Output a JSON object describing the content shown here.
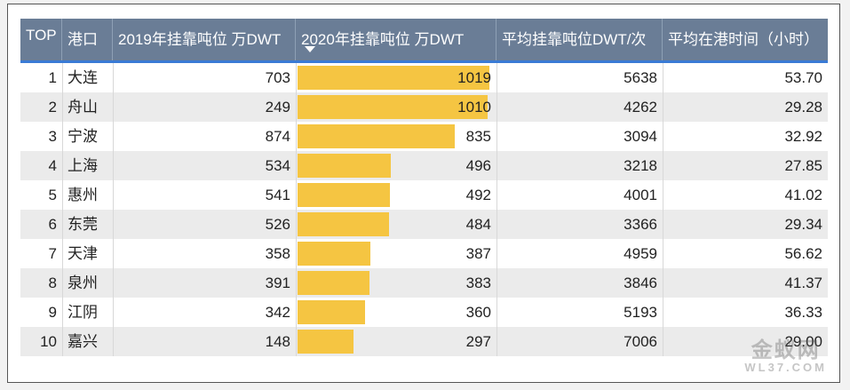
{
  "headers": {
    "rank": "TOP",
    "port": "港口",
    "y2019": "2019年挂靠吨位 万DWT",
    "y2020": "2020年挂靠吨位 万DWT",
    "avg_dwt": "平均挂靠吨位DWT/次",
    "avg_time": "平均在港时间（小时）"
  },
  "sort": {
    "column": "y2020",
    "direction": "desc",
    "icon": "sort-down-icon"
  },
  "colors": {
    "header_bg": "#6a7d96",
    "bar": "#f5c542",
    "alt_row": "#ebebeb",
    "accent": "#3a7bd5"
  },
  "chart_data": {
    "type": "table",
    "bar_column": "y2020",
    "bar_max": 1019,
    "rows": [
      {
        "rank": "1",
        "port": "大连",
        "y2019": "703",
        "y2020": "1019",
        "avg_dwt": "5638",
        "avg_time": "53.70"
      },
      {
        "rank": "2",
        "port": "舟山",
        "y2019": "249",
        "y2020": "1010",
        "avg_dwt": "4262",
        "avg_time": "29.28"
      },
      {
        "rank": "3",
        "port": "宁波",
        "y2019": "874",
        "y2020": "835",
        "avg_dwt": "3094",
        "avg_time": "32.92"
      },
      {
        "rank": "4",
        "port": "上海",
        "y2019": "534",
        "y2020": "496",
        "avg_dwt": "3218",
        "avg_time": "27.85"
      },
      {
        "rank": "5",
        "port": "惠州",
        "y2019": "541",
        "y2020": "492",
        "avg_dwt": "4001",
        "avg_time": "41.02"
      },
      {
        "rank": "6",
        "port": "东莞",
        "y2019": "526",
        "y2020": "484",
        "avg_dwt": "3366",
        "avg_time": "29.34"
      },
      {
        "rank": "7",
        "port": "天津",
        "y2019": "358",
        "y2020": "387",
        "avg_dwt": "4959",
        "avg_time": "56.62"
      },
      {
        "rank": "8",
        "port": "泉州",
        "y2019": "391",
        "y2020": "383",
        "avg_dwt": "3846",
        "avg_time": "41.37"
      },
      {
        "rank": "9",
        "port": "江阴",
        "y2019": "342",
        "y2020": "360",
        "avg_dwt": "5193",
        "avg_time": "36.33"
      },
      {
        "rank": "10",
        "port": "嘉兴",
        "y2019": "148",
        "y2020": "297",
        "avg_dwt": "7006",
        "avg_time": "29.00"
      }
    ]
  },
  "watermark": {
    "line1": "金蚁网",
    "line2": "WL37.COM"
  }
}
